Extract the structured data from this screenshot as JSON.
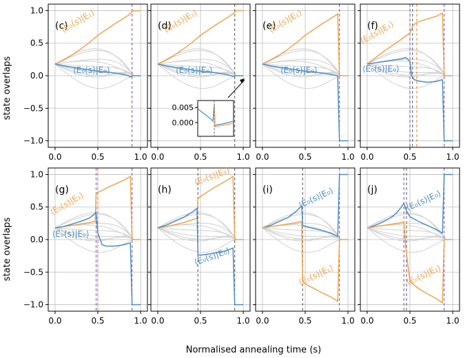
{
  "figure": {
    "xlabel": "Normalised annealing time (s)",
    "ylabel": "state overlaps"
  },
  "colors": {
    "orange": "#f0a24a",
    "blue": "#4a8cc4",
    "grey": "#d3d3d3",
    "vline_orange": "#e3954a",
    "vline_purple": "#8c6bc8",
    "vline_grey": "#6f6f6f"
  },
  "chart_data": [
    {
      "type": "line",
      "panel": "(c)",
      "xlim": [
        0,
        1
      ],
      "ylim": [
        -1.1,
        1.1
      ],
      "xticks": [
        "0.0",
        "0.5",
        "1.0"
      ],
      "yticks": [
        "1.0",
        "0.5",
        "0.0",
        "−0.5",
        "−1.0"
      ],
      "grid": true,
      "vlines": [
        {
          "x": 0.9,
          "color": "purple"
        }
      ],
      "labels": [
        {
          "text": "⟨E₀(s)|E₁⟩",
          "color": "orange"
        },
        {
          "text": "⟨E₀(s)|E₀⟩",
          "color": "blue"
        }
      ],
      "series": [
        {
          "color": "orange",
          "x": [
            0,
            0.1,
            0.2,
            0.3,
            0.4,
            0.5,
            0.6,
            0.7,
            0.8,
            0.88,
            0.9,
            0.92,
            1.0
          ],
          "y": [
            0.18,
            0.24,
            0.32,
            0.41,
            0.51,
            0.62,
            0.71,
            0.8,
            0.88,
            0.95,
            0.99,
            1.0,
            1.0
          ]
        },
        {
          "color": "blue",
          "x": [
            0,
            0.1,
            0.2,
            0.3,
            0.4,
            0.5,
            0.6,
            0.7,
            0.8,
            0.86,
            0.88,
            0.9,
            1.0
          ],
          "y": [
            0.18,
            0.15,
            0.13,
            0.11,
            0.09,
            0.07,
            0.06,
            0.04,
            0.02,
            0.0,
            -0.02,
            0.0,
            0.0
          ]
        }
      ]
    },
    {
      "type": "line",
      "panel": "(d)",
      "xlim": [
        0,
        1
      ],
      "ylim": [
        -1.1,
        1.1
      ],
      "xticks": [
        "0.0",
        "0.5",
        "1.0"
      ],
      "yticks": [],
      "grid": true,
      "vlines": [
        {
          "x": 0.9,
          "color": "grey"
        }
      ],
      "labels": [
        {
          "text": "⟨E₀(s)|E₁⟩",
          "color": "orange"
        },
        {
          "text": "⟨E₀(s)|E₀⟩",
          "color": "blue"
        }
      ],
      "inset": {
        "yticks": [
          "0.005",
          "0.000"
        ]
      },
      "series": [
        {
          "color": "orange",
          "x": [
            0,
            0.1,
            0.2,
            0.3,
            0.4,
            0.5,
            0.6,
            0.7,
            0.8,
            0.88,
            0.9,
            0.92,
            1.0
          ],
          "y": [
            0.18,
            0.24,
            0.32,
            0.41,
            0.51,
            0.62,
            0.71,
            0.8,
            0.88,
            0.95,
            0.98,
            1.0,
            1.0
          ]
        },
        {
          "color": "blue",
          "x": [
            0,
            0.1,
            0.2,
            0.3,
            0.4,
            0.5,
            0.6,
            0.7,
            0.8,
            0.86,
            0.88,
            0.9,
            1.0
          ],
          "y": [
            0.18,
            0.15,
            0.13,
            0.11,
            0.09,
            0.07,
            0.06,
            0.04,
            0.02,
            0.0,
            -0.01,
            0.0,
            0.0
          ]
        }
      ]
    },
    {
      "type": "line",
      "panel": "(e)",
      "xlim": [
        0,
        1
      ],
      "ylim": [
        -1.1,
        1.1
      ],
      "xticks": [
        "0.0",
        "0.5",
        "1.0"
      ],
      "yticks": [],
      "grid": true,
      "vlines": [
        {
          "x": 0.9,
          "color": "purple"
        }
      ],
      "labels": [
        {
          "text": "⟨E₀(s)|E₁⟩",
          "color": "orange"
        },
        {
          "text": "⟨E₀(s)|E₀⟩",
          "color": "blue"
        }
      ],
      "series": [
        {
          "color": "orange",
          "x": [
            0,
            0.1,
            0.2,
            0.3,
            0.4,
            0.5,
            0.6,
            0.7,
            0.8,
            0.88,
            0.9,
            0.91,
            1.0
          ],
          "y": [
            0.18,
            0.24,
            0.32,
            0.41,
            0.51,
            0.62,
            0.71,
            0.8,
            0.88,
            0.95,
            0.0,
            0.0,
            0.0
          ]
        },
        {
          "color": "blue",
          "x": [
            0,
            0.1,
            0.2,
            0.3,
            0.4,
            0.5,
            0.6,
            0.7,
            0.8,
            0.88,
            0.9,
            0.91,
            1.0
          ],
          "y": [
            0.18,
            0.15,
            0.13,
            0.11,
            0.09,
            0.07,
            0.06,
            0.04,
            0.02,
            0.0,
            -1.0,
            -1.0,
            -1.0
          ]
        }
      ]
    },
    {
      "type": "line",
      "panel": "(f)",
      "xlim": [
        0,
        1
      ],
      "ylim": [
        -1.1,
        1.1
      ],
      "xticks": [
        "0.0",
        "0.5",
        "1.0"
      ],
      "yticks": [],
      "grid": true,
      "vlines": [
        {
          "x": 0.5,
          "color": "purple"
        },
        {
          "x": 0.53,
          "color": "grey"
        },
        {
          "x": 0.58,
          "color": "orange"
        },
        {
          "x": 0.9,
          "color": "purple"
        }
      ],
      "labels": [
        {
          "text": "⟨E₀(s)|E₁⟩",
          "color": "orange"
        },
        {
          "text": "⟨E₀(s)|E₀⟩",
          "color": "blue"
        }
      ],
      "series": [
        {
          "color": "orange",
          "x": [
            0,
            0.1,
            0.2,
            0.3,
            0.4,
            0.5,
            0.52,
            0.54,
            0.6,
            0.7,
            0.8,
            0.88,
            0.9,
            0.91,
            1.0
          ],
          "y": [
            0.18,
            0.28,
            0.38,
            0.47,
            0.56,
            0.66,
            0.72,
            0.78,
            0.83,
            0.87,
            0.91,
            0.96,
            0.0,
            0.0,
            0.0
          ]
        },
        {
          "color": "blue",
          "x": [
            0,
            0.1,
            0.2,
            0.3,
            0.4,
            0.45,
            0.5,
            0.52,
            0.55,
            0.6,
            0.7,
            0.8,
            0.88,
            0.9,
            0.91,
            1.0
          ],
          "y": [
            0.18,
            0.2,
            0.22,
            0.24,
            0.26,
            0.28,
            0.22,
            0.0,
            -0.06,
            -0.08,
            -0.1,
            -0.09,
            -0.06,
            -1.0,
            -1.0,
            -1.0
          ]
        }
      ]
    },
    {
      "type": "line",
      "panel": "(g)",
      "xlim": [
        0,
        1
      ],
      "ylim": [
        -1.1,
        1.1
      ],
      "xticks": [
        "0.0",
        "0.5",
        "1.0"
      ],
      "yticks": [
        "1.0",
        "0.5",
        "0.0",
        "−0.5",
        "−1.0"
      ],
      "grid": true,
      "vlines": [
        {
          "x": 0.48,
          "color": "purple"
        },
        {
          "x": 0.5,
          "color": "orange"
        },
        {
          "x": 0.9,
          "color": "purple"
        }
      ],
      "labels": [
        {
          "text": "⟨E₀(s)|E₁⟩",
          "color": "orange"
        },
        {
          "text": "⟨E₀(s)|E₀⟩",
          "color": "blue"
        }
      ],
      "series": [
        {
          "color": "orange",
          "x": [
            0,
            0.1,
            0.2,
            0.3,
            0.4,
            0.47,
            0.48,
            0.5,
            0.6,
            0.7,
            0.8,
            0.88,
            0.9,
            0.91,
            1.0
          ],
          "y": [
            0.18,
            0.2,
            0.22,
            0.24,
            0.26,
            0.28,
            0.7,
            0.72,
            0.79,
            0.85,
            0.91,
            0.97,
            0.0,
            0.0,
            0.0
          ]
        },
        {
          "color": "blue",
          "x": [
            0,
            0.1,
            0.2,
            0.3,
            0.4,
            0.45,
            0.48,
            0.5,
            0.55,
            0.6,
            0.7,
            0.8,
            0.88,
            0.9,
            0.91,
            1.0
          ],
          "y": [
            0.18,
            0.2,
            0.24,
            0.28,
            0.33,
            0.38,
            0.42,
            0.1,
            -0.08,
            -0.1,
            -0.1,
            -0.08,
            -0.05,
            -1.0,
            -1.0,
            -1.0
          ]
        }
      ]
    },
    {
      "type": "line",
      "panel": "(h)",
      "xlim": [
        0,
        1
      ],
      "ylim": [
        -1.1,
        1.1
      ],
      "xticks": [
        "0.0",
        "0.5",
        "1.0"
      ],
      "yticks": [],
      "grid": true,
      "vlines": [
        {
          "x": 0.47,
          "color": "grey"
        },
        {
          "x": 0.9,
          "color": "grey"
        }
      ],
      "labels": [
        {
          "text": "⟨E₀(s)|E₁⟩",
          "color": "orange"
        },
        {
          "text": "⟨E₀(s)|E₀⟩",
          "color": "blue"
        }
      ],
      "series": [
        {
          "color": "orange",
          "x": [
            0,
            0.1,
            0.2,
            0.3,
            0.4,
            0.46,
            0.47,
            0.5,
            0.6,
            0.7,
            0.8,
            0.88,
            0.9,
            0.91,
            1.0
          ],
          "y": [
            0.18,
            0.2,
            0.23,
            0.26,
            0.3,
            0.33,
            0.63,
            0.66,
            0.75,
            0.83,
            0.9,
            0.97,
            0.0,
            0.0,
            0.0
          ]
        },
        {
          "color": "blue",
          "x": [
            0,
            0.1,
            0.2,
            0.3,
            0.4,
            0.46,
            0.47,
            0.5,
            0.6,
            0.7,
            0.8,
            0.88,
            0.9,
            0.91,
            1.0
          ],
          "y": [
            0.18,
            0.22,
            0.28,
            0.34,
            0.42,
            0.48,
            -0.23,
            -0.24,
            -0.22,
            -0.2,
            -0.17,
            -0.13,
            -1.0,
            -1.0,
            -1.0
          ]
        }
      ]
    },
    {
      "type": "line",
      "panel": "(i)",
      "xlim": [
        0,
        1
      ],
      "ylim": [
        -1.1,
        1.1
      ],
      "xticks": [
        "0.0",
        "0.5",
        "1.0"
      ],
      "yticks": [],
      "grid": true,
      "vlines": [
        {
          "x": 0.47,
          "color": "grey"
        },
        {
          "x": 0.9,
          "color": "purple"
        }
      ],
      "labels": [
        {
          "text": "⟨E₀(s)|E₀⟩",
          "color": "blue"
        },
        {
          "text": "⟨E₀(s)|E₁⟩",
          "color": "orange"
        }
      ],
      "series": [
        {
          "color": "blue",
          "x": [
            0,
            0.1,
            0.2,
            0.3,
            0.4,
            0.46,
            0.47,
            0.5,
            0.6,
            0.7,
            0.8,
            0.88,
            0.9,
            0.91,
            1.0
          ],
          "y": [
            0.18,
            0.22,
            0.28,
            0.34,
            0.44,
            0.52,
            0.22,
            0.2,
            0.17,
            0.14,
            0.1,
            0.05,
            1.0,
            1.0,
            1.0
          ]
        },
        {
          "color": "orange",
          "x": [
            0,
            0.1,
            0.2,
            0.3,
            0.4,
            0.46,
            0.47,
            0.5,
            0.6,
            0.7,
            0.8,
            0.88,
            0.9,
            0.91,
            1.0
          ],
          "y": [
            0.18,
            0.2,
            0.22,
            0.24,
            0.26,
            0.28,
            -0.65,
            -0.68,
            -0.75,
            -0.82,
            -0.88,
            -0.95,
            0.0,
            0.0,
            0.0
          ]
        }
      ]
    },
    {
      "type": "line",
      "panel": "(j)",
      "xlim": [
        0,
        1
      ],
      "ylim": [
        -1.1,
        1.1
      ],
      "xticks": [
        "0.0",
        "0.5",
        "1.0"
      ],
      "yticks": [],
      "grid": true,
      "vlines": [
        {
          "x": 0.43,
          "color": "purple"
        },
        {
          "x": 0.46,
          "color": "grey"
        },
        {
          "x": 0.9,
          "color": "purple"
        }
      ],
      "labels": [
        {
          "text": "⟨E₀(s)|E₀⟩",
          "color": "blue"
        },
        {
          "text": "⟨E₀(s)|E₁⟩",
          "color": "orange"
        }
      ],
      "series": [
        {
          "color": "blue",
          "x": [
            0,
            0.1,
            0.2,
            0.3,
            0.35,
            0.4,
            0.43,
            0.46,
            0.5,
            0.6,
            0.7,
            0.8,
            0.88,
            0.9,
            0.91,
            1.0
          ],
          "y": [
            0.18,
            0.22,
            0.28,
            0.36,
            0.42,
            0.5,
            0.56,
            0.44,
            0.35,
            0.28,
            0.22,
            0.16,
            0.1,
            1.0,
            1.0,
            1.0
          ]
        },
        {
          "color": "orange",
          "x": [
            0,
            0.1,
            0.2,
            0.3,
            0.4,
            0.43,
            0.45,
            0.5,
            0.6,
            0.7,
            0.8,
            0.88,
            0.9,
            0.91,
            1.0
          ],
          "y": [
            0.18,
            0.2,
            0.22,
            0.24,
            0.26,
            0.27,
            -0.1,
            -0.65,
            -0.75,
            -0.83,
            -0.9,
            -0.97,
            0.0,
            0.0,
            0.0
          ]
        }
      ]
    }
  ]
}
